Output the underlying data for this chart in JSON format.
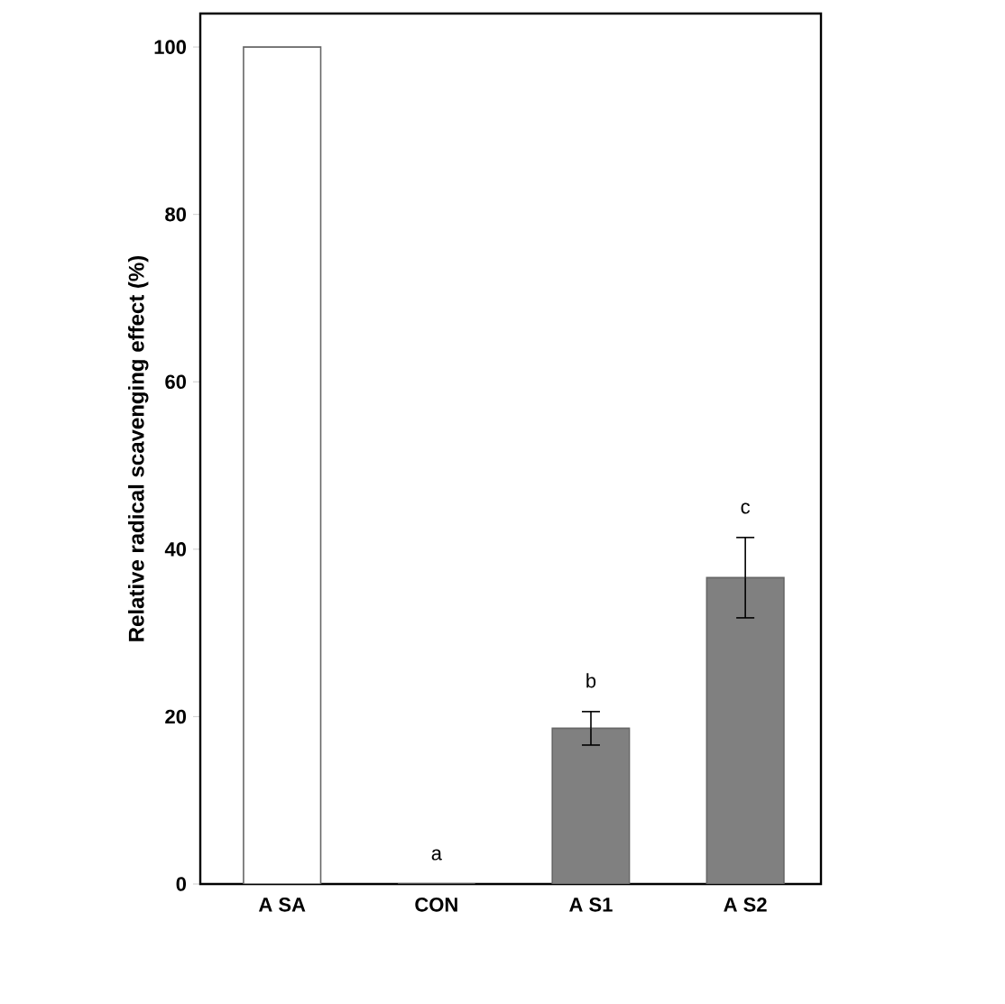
{
  "chart_data": {
    "type": "bar",
    "ylabel": "Relative radical scavenging effect (%)",
    "categories": [
      "A SA",
      "CON",
      "A S1",
      "A S2"
    ],
    "values": [
      100,
      0,
      18.6,
      36.6
    ],
    "errors": [
      null,
      null,
      2.0,
      4.8
    ],
    "colors": [
      "#ffffff",
      "#808080",
      "#808080",
      "#808080"
    ],
    "ylim": [
      0,
      104
    ],
    "yticks": [
      0,
      20,
      40,
      60,
      80,
      100
    ],
    "grid": false,
    "annotations": [
      "a",
      "b",
      "c"
    ]
  }
}
